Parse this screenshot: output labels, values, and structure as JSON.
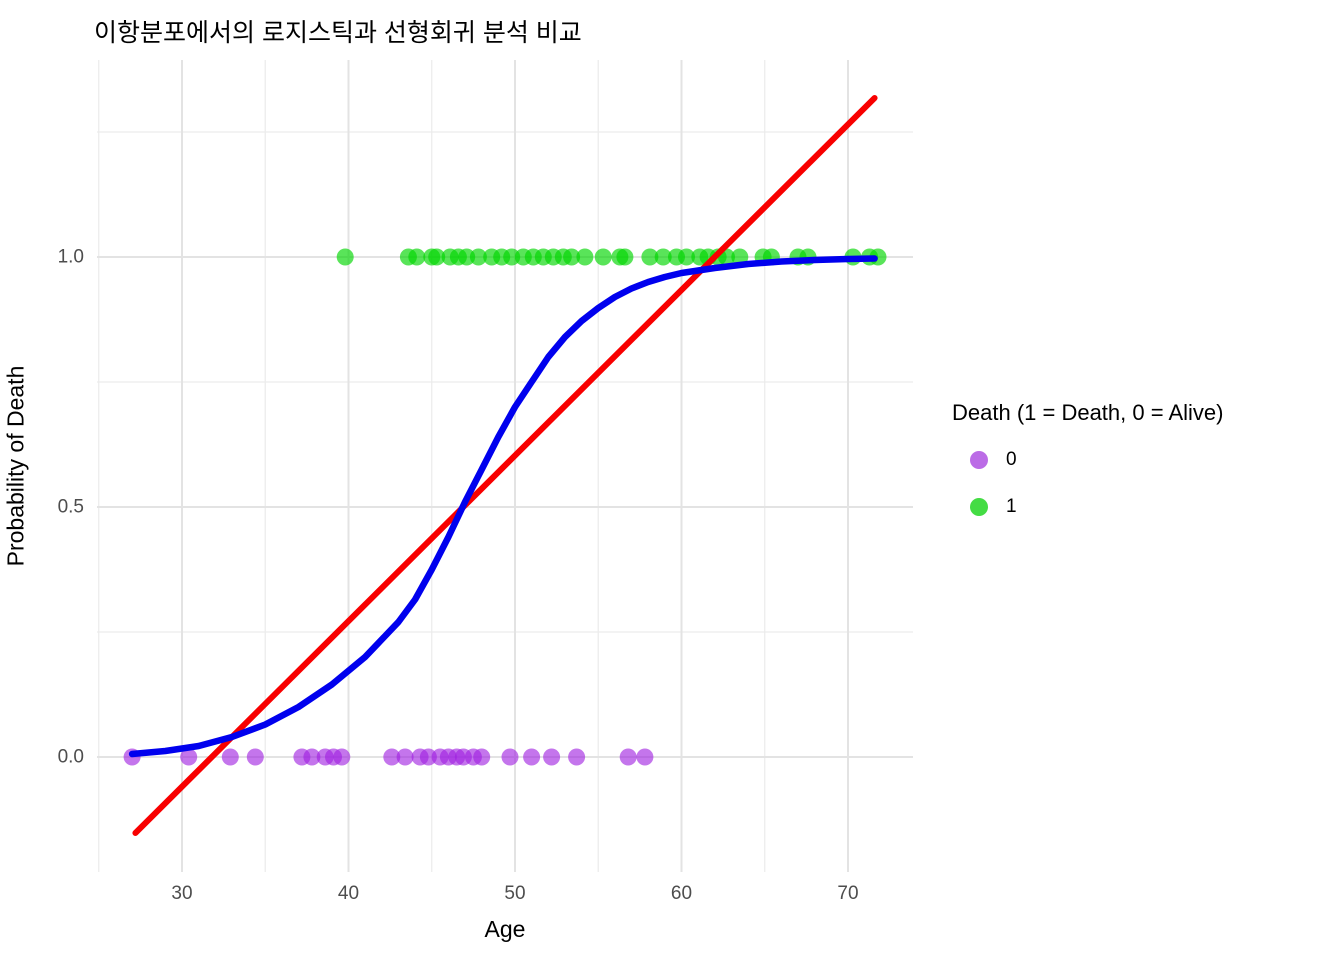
{
  "title": "이항분포에서의 로지스틱과 선형회귀 분석 비교",
  "axes": {
    "x_label": "Age",
    "y_label": "Probability of Death",
    "x_tick_labels": [
      "30",
      "40",
      "50",
      "60",
      "70"
    ],
    "y_tick_labels": [
      "0.0",
      "0.5",
      "1.0"
    ]
  },
  "legend": {
    "title": "Death (1 = Death, 0 = Alive)",
    "items": [
      {
        "label": "0",
        "color": "#bb6be6"
      },
      {
        "label": "1",
        "color": "#44dc44"
      }
    ]
  },
  "colors": {
    "alive_point": "rgba(160,32,224,0.62)",
    "death_point": "rgba(0,214,0,0.65)",
    "linear_line": "#f80000",
    "logistic_line": "#0000ee",
    "grid_major": "#e3e3e3",
    "grid_minor": "#ececec",
    "tick_text": "#4d4d4d"
  },
  "chart_data": {
    "type": "scatter",
    "title": "이항분포에서의 로지스틱과 선형회귀 분석 비교",
    "xlabel": "Age",
    "ylabel": "Probability of Death",
    "x_axis": {
      "ticks": [
        30,
        40,
        50,
        60,
        70
      ],
      "minor_ticks": [
        25,
        35,
        45,
        55,
        65
      ],
      "range": [
        24.9,
        73.9
      ]
    },
    "y_axis": {
      "ticks": [
        0.0,
        0.5,
        1.0
      ],
      "minor_ticks": [
        0.25,
        0.75,
        1.25
      ],
      "range": [
        -0.23,
        1.39
      ]
    },
    "grid": true,
    "legend_position": "right",
    "series": [
      {
        "name": "0",
        "value": 0,
        "ages": [
          27.0,
          30.4,
          32.9,
          34.4,
          37.2,
          37.8,
          38.6,
          39.1,
          39.6,
          42.6,
          43.4,
          44.3,
          44.8,
          45.5,
          46.0,
          46.5,
          46.9,
          47.5,
          48.0,
          49.7,
          51.0,
          52.2,
          53.7,
          56.8,
          57.8
        ]
      },
      {
        "name": "1",
        "value": 1,
        "ages": [
          39.8,
          43.6,
          44.1,
          45.0,
          45.3,
          46.1,
          46.6,
          47.1,
          47.8,
          48.6,
          49.2,
          49.8,
          50.5,
          51.1,
          51.7,
          52.3,
          52.9,
          53.4,
          54.2,
          55.3,
          56.3,
          56.6,
          58.1,
          58.9,
          59.7,
          60.3,
          61.1,
          61.6,
          62.2,
          62.7,
          63.5,
          64.9,
          65.4,
          67.0,
          67.6,
          70.3,
          71.3,
          71.8
        ]
      }
    ],
    "linear_fit": {
      "description": "linear regression line",
      "x": [
        27.2,
        71.6
      ],
      "y": [
        -0.152,
        1.318
      ]
    },
    "logistic_fit": {
      "description": "logistic regression curve",
      "points": [
        [
          27.0,
          0.006
        ],
        [
          29.0,
          0.012
        ],
        [
          31.0,
          0.022
        ],
        [
          33.0,
          0.04
        ],
        [
          35.0,
          0.065
        ],
        [
          37.0,
          0.1
        ],
        [
          39.0,
          0.145
        ],
        [
          41.0,
          0.2
        ],
        [
          43.0,
          0.27
        ],
        [
          44.0,
          0.315
        ],
        [
          45.0,
          0.375
        ],
        [
          46.0,
          0.44
        ],
        [
          47.0,
          0.51
        ],
        [
          48.0,
          0.575
        ],
        [
          49.0,
          0.64
        ],
        [
          50.0,
          0.7
        ],
        [
          51.0,
          0.75
        ],
        [
          52.0,
          0.8
        ],
        [
          53.0,
          0.84
        ],
        [
          54.0,
          0.872
        ],
        [
          55.0,
          0.898
        ],
        [
          56.0,
          0.92
        ],
        [
          57.0,
          0.937
        ],
        [
          58.0,
          0.95
        ],
        [
          59.0,
          0.96
        ],
        [
          60.0,
          0.968
        ],
        [
          62.0,
          0.978
        ],
        [
          64.0,
          0.986
        ],
        [
          66.0,
          0.991
        ],
        [
          68.0,
          0.994
        ],
        [
          70.0,
          0.996
        ],
        [
          71.6,
          0.997
        ]
      ]
    }
  }
}
